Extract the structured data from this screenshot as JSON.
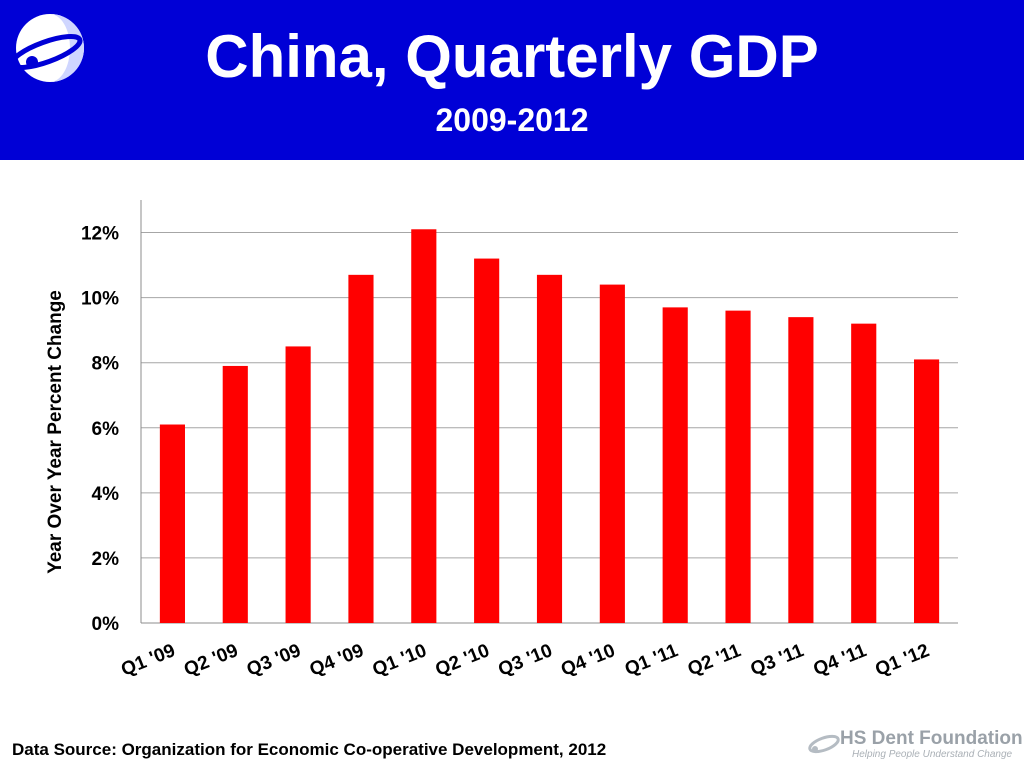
{
  "header": {
    "title": "China, Quarterly GDP",
    "subtitle": "2009-2012"
  },
  "footer": {
    "source": "Data Source: Organization for Economic Co-operative Development, 2012",
    "brand_name": "HS Dent Foundation",
    "brand_tagline": "Helping People Understand Change"
  },
  "colors": {
    "header_background": "#0000d6",
    "bar": "#ff0000",
    "gridline": "#a6a6a6"
  },
  "chart_data": {
    "type": "bar",
    "title": "China, Quarterly GDP",
    "subtitle": "2009-2012",
    "xlabel": "",
    "ylabel": "Year Over Year Percent Change",
    "categories": [
      "Q1 '09",
      "Q2 '09",
      "Q3 '09",
      "Q4 '09",
      "Q1 '10",
      "Q2 '10",
      "Q3 '10",
      "Q4 '10",
      "Q1 '11",
      "Q2 '11",
      "Q3 '11",
      "Q4 '11",
      "Q1 '12"
    ],
    "values": [
      6.1,
      7.9,
      8.5,
      10.7,
      12.1,
      11.2,
      10.7,
      10.4,
      9.7,
      9.6,
      9.4,
      9.2,
      8.1
    ],
    "ylim": [
      0,
      13
    ],
    "yticks": [
      0,
      2,
      4,
      6,
      8,
      10,
      12
    ],
    "ytick_labels": [
      "0%",
      "2%",
      "4%",
      "6%",
      "8%",
      "10%",
      "12%"
    ],
    "grid": true,
    "legend": "none"
  }
}
